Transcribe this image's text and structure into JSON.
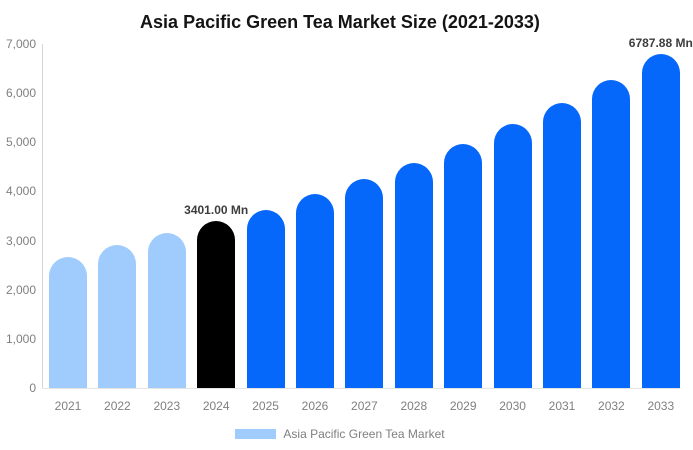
{
  "title": "Asia Pacific Green Tea Market Size (2021-2033)",
  "legend": {
    "label": "Asia Pacific Green Tea Market",
    "swatch_color": "#9fccfd"
  },
  "colors": {
    "historical_bar": "#9fccfd",
    "base_year_bar": "#000000",
    "forecast_bar": "#0668fb",
    "axis_text": "#7f7f7f",
    "data_label_text": "#3d3d3d"
  },
  "chart_data": {
    "type": "bar",
    "title": "Asia Pacific Green Tea Market Size (2021-2033)",
    "xlabel": "",
    "ylabel": "",
    "unit": "Mn",
    "categories": [
      "2021",
      "2022",
      "2023",
      "2024",
      "2025",
      "2026",
      "2027",
      "2028",
      "2029",
      "2030",
      "2031",
      "2032",
      "2033"
    ],
    "values": [
      2670,
      2910,
      3150,
      3401,
      3620,
      3950,
      4250,
      4580,
      4970,
      5380,
      5800,
      6270,
      6787.88
    ],
    "bar_colors": [
      "#9fccfd",
      "#9fccfd",
      "#9fccfd",
      "#000000",
      "#0668fb",
      "#0668fb",
      "#0668fb",
      "#0668fb",
      "#0668fb",
      "#0668fb",
      "#0668fb",
      "#0668fb",
      "#0668fb"
    ],
    "annotations": [
      {
        "index": 3,
        "text": "3401.00 Mn"
      },
      {
        "index": 12,
        "text": "6787.88 Mn"
      }
    ],
    "ylim": [
      0,
      7000
    ],
    "yticks": [
      0,
      1000,
      2000,
      3000,
      4000,
      5000,
      6000,
      7000
    ],
    "ytick_labels": [
      "0",
      "1,000",
      "2,000",
      "3,000",
      "4,000",
      "5,000",
      "6,000",
      "7,000"
    ],
    "grid": false,
    "legend_position": "bottom-center"
  }
}
